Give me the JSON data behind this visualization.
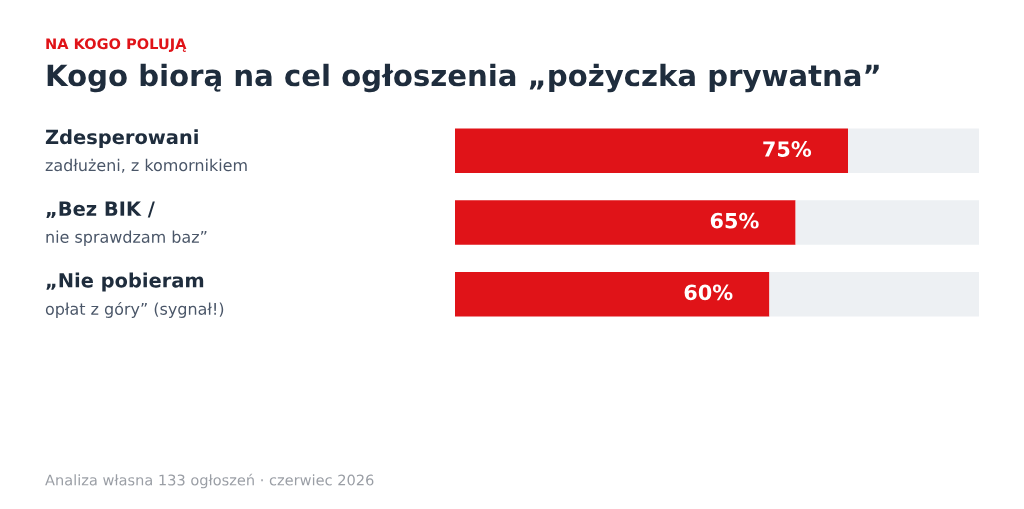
{
  "chart_data": {
    "type": "bar",
    "orientation": "horizontal",
    "stacked": true,
    "subtitle": "NA KOGO POLUJĄ",
    "title": "Kogo biorą na cel ogłoszenia „pożyczka prywatna”",
    "categories": [
      "Zdesperowani\nzadłużeni, z komornikiem",
      "„Bez BIK /\nnie sprawdzam baz”",
      "„Nie pobieram\nopłat z góry” (sygnał!)"
    ],
    "series": [
      {
        "color": "#e01318",
        "values": [
          75,
          65,
          60
        ],
        "value_labels": [
          "75%",
          "65%",
          "60%"
        ]
      },
      {
        "color": "#edf0f3",
        "values": [
          25,
          35,
          40
        ]
      }
    ],
    "xlim": [
      0,
      100
    ],
    "annotations": [
      "Analiza własna 133 ogłoszeń · czerwiec 2026"
    ]
  }
}
